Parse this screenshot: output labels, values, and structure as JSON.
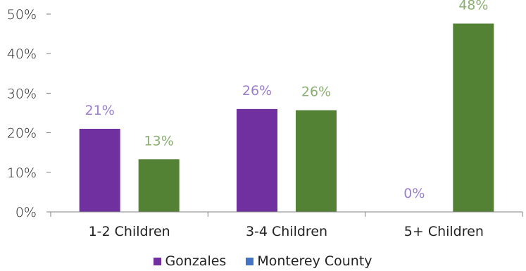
{
  "chart_data": {
    "type": "bar",
    "title": "",
    "xlabel": "",
    "ylabel": "",
    "ylim": [
      0,
      50
    ],
    "yticks": [
      0,
      10,
      20,
      30,
      40,
      50
    ],
    "ytick_labels": [
      "0%",
      "10%",
      "20%",
      "30%",
      "40%",
      "50%"
    ],
    "categories": [
      "1-2 Children",
      "3-4 Children",
      "5+ Children"
    ],
    "series": [
      {
        "name": "Gonzales",
        "values": [
          21,
          26,
          0
        ],
        "labels": [
          "21%",
          "26%",
          "0%"
        ],
        "color": "#7030a0",
        "label_color": "#9b7fce"
      },
      {
        "name": "Monterey County",
        "values": [
          13.3,
          25.7,
          47.6
        ],
        "labels": [
          "13%",
          "26%",
          "48%"
        ],
        "color": "#548235",
        "label_color": "#8aaf72",
        "legend_color": "#4472c4"
      }
    ],
    "legend_position": "bottom",
    "grid": false
  }
}
